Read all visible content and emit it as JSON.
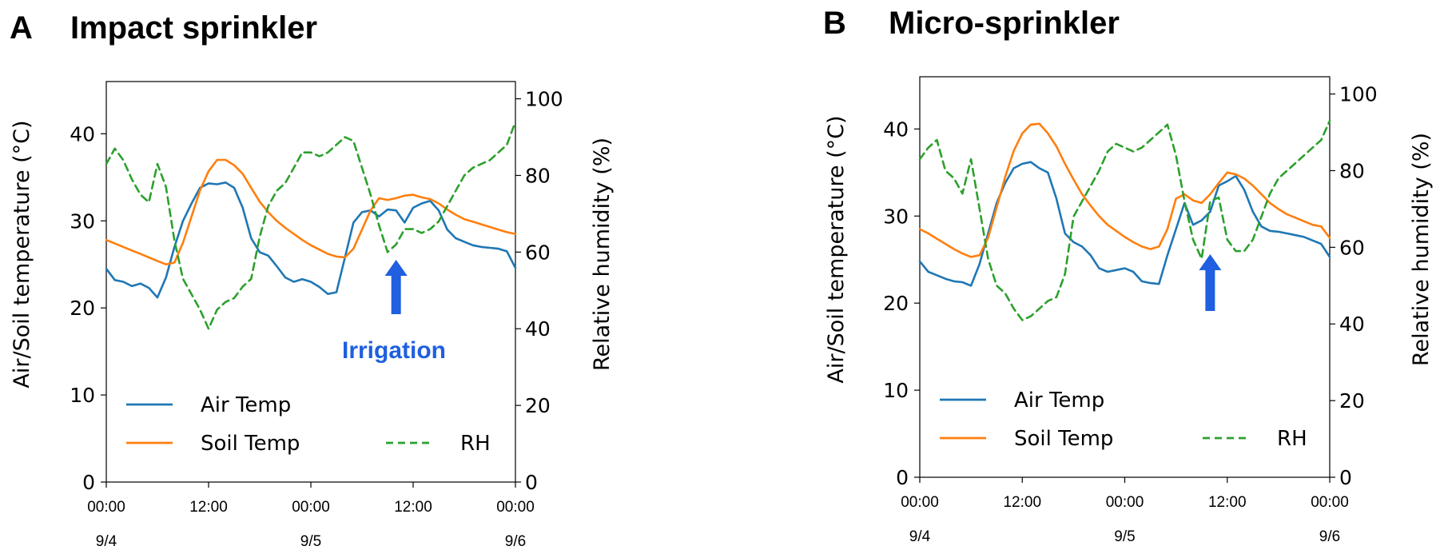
{
  "chart_data": [
    {
      "type": "line",
      "panel_letter": "A",
      "title": "Impact sprinkler",
      "ylabel": "Air/Soil temperature (°C)",
      "y2label": "Relative humidity (%)",
      "xlim": [
        0,
        48
      ],
      "ylim": [
        0,
        46
      ],
      "y2lim": [
        0,
        104.5
      ],
      "yticks": [
        0,
        10,
        20,
        30,
        40
      ],
      "y2ticks": [
        0,
        20,
        40,
        60,
        80,
        100
      ],
      "xticks": [
        {
          "hour": 0,
          "time": "00:00",
          "date": "9/4"
        },
        {
          "hour": 12,
          "time": "12:00",
          "date": ""
        },
        {
          "hour": 24,
          "time": "00:00",
          "date": "9/5"
        },
        {
          "hour": 36,
          "time": "12:00",
          "date": ""
        },
        {
          "hour": 48,
          "time": "00:00",
          "date": "9/6"
        }
      ],
      "legend_placement": "bottom",
      "grid": false,
      "annotation": {
        "text": "Irrigation",
        "x_hour": 34,
        "arrow": true
      },
      "series": [
        {
          "name": "Air Temp",
          "axis": "left",
          "color": "#1f77b4",
          "style": "solid",
          "x": [
            0,
            1,
            2,
            3,
            4,
            5,
            6,
            7,
            8,
            9,
            10,
            11,
            12,
            13,
            14,
            15,
            16,
            17,
            18,
            19,
            20,
            21,
            22,
            23,
            24,
            25,
            26,
            27,
            28,
            29,
            30,
            31,
            32,
            33,
            34,
            35,
            36,
            37,
            38,
            39,
            40,
            41,
            42,
            43,
            44,
            45,
            46,
            47,
            48
          ],
          "y": [
            24.5,
            23.2,
            23.0,
            22.5,
            22.8,
            22.3,
            21.2,
            23.5,
            27.0,
            30.0,
            32.0,
            33.8,
            34.3,
            34.2,
            34.4,
            33.8,
            31.5,
            28.0,
            26.4,
            26.0,
            24.8,
            23.5,
            23.0,
            23.3,
            23.0,
            22.4,
            21.6,
            21.8,
            25.8,
            29.8,
            31.0,
            31.2,
            30.5,
            31.3,
            31.2,
            29.8,
            31.5,
            32.0,
            32.3,
            31.2,
            29.0,
            28.0,
            27.6,
            27.2,
            27.0,
            26.9,
            26.8,
            26.5,
            24.6
          ]
        },
        {
          "name": "Soil Temp",
          "axis": "left",
          "color": "#ff7f0e",
          "style": "solid",
          "x": [
            0,
            1,
            2,
            3,
            4,
            5,
            6,
            7,
            8,
            9,
            10,
            11,
            12,
            13,
            14,
            15,
            16,
            17,
            18,
            19,
            20,
            21,
            22,
            23,
            24,
            25,
            26,
            27,
            28,
            29,
            30,
            31,
            32,
            33,
            34,
            35,
            36,
            37,
            38,
            39,
            40,
            41,
            42,
            43,
            44,
            45,
            46,
            47,
            48
          ],
          "y": [
            27.8,
            27.4,
            27.0,
            26.6,
            26.2,
            25.8,
            25.4,
            25.0,
            25.2,
            27.5,
            30.5,
            33.5,
            35.7,
            37.0,
            37.0,
            36.4,
            35.4,
            33.8,
            32.2,
            31.0,
            30.0,
            29.2,
            28.5,
            27.8,
            27.2,
            26.7,
            26.2,
            25.9,
            25.8,
            26.8,
            29.0,
            31.2,
            32.6,
            32.4,
            32.6,
            32.9,
            33.0,
            32.7,
            32.5,
            32.0,
            31.3,
            30.7,
            30.2,
            29.9,
            29.6,
            29.3,
            29.0,
            28.7,
            28.5
          ]
        },
        {
          "name": "RH",
          "axis": "right",
          "color": "#2ca02c",
          "style": "dashed",
          "x": [
            0,
            1,
            2,
            3,
            4,
            5,
            6,
            7,
            8,
            9,
            10,
            11,
            12,
            13,
            14,
            15,
            16,
            17,
            18,
            19,
            20,
            21,
            22,
            23,
            24,
            25,
            26,
            27,
            28,
            29,
            30,
            31,
            32,
            33,
            34,
            35,
            36,
            37,
            38,
            39,
            40,
            41,
            42,
            43,
            44,
            45,
            46,
            47,
            48
          ],
          "y": [
            83,
            87,
            84,
            79,
            75,
            73,
            83,
            77,
            63,
            53,
            49,
            45,
            40,
            45,
            47,
            48,
            51,
            53,
            64,
            72,
            76,
            78,
            82,
            86,
            86,
            85,
            86,
            88,
            90,
            89,
            82,
            75,
            67,
            60,
            62,
            66,
            66,
            65,
            66,
            68,
            72,
            76,
            80,
            82,
            83,
            84,
            86,
            88,
            94
          ]
        }
      ]
    },
    {
      "type": "line",
      "panel_letter": "B",
      "title": "Micro-sprinkler",
      "ylabel": "Air/Soil temperature (°C)",
      "y2label": "Relative humidity (%)",
      "xlim": [
        0,
        48
      ],
      "ylim": [
        0,
        46
      ],
      "y2lim": [
        0,
        104.5
      ],
      "yticks": [
        0,
        10,
        20,
        30,
        40
      ],
      "y2ticks": [
        0,
        20,
        40,
        60,
        80,
        100
      ],
      "xticks": [
        {
          "hour": 0,
          "time": "00:00",
          "date": "9/4"
        },
        {
          "hour": 12,
          "time": "12:00",
          "date": ""
        },
        {
          "hour": 24,
          "time": "00:00",
          "date": "9/5"
        },
        {
          "hour": 36,
          "time": "12:00",
          "date": ""
        },
        {
          "hour": 48,
          "time": "00:00",
          "date": "9/6"
        }
      ],
      "legend_placement": "bottom",
      "grid": false,
      "annotation": {
        "text": "",
        "x_hour": 34,
        "arrow": true
      },
      "series": [
        {
          "name": "Air Temp",
          "axis": "left",
          "color": "#1f77b4",
          "style": "solid",
          "x": [
            0,
            1,
            2,
            3,
            4,
            5,
            6,
            7,
            8,
            9,
            10,
            11,
            12,
            13,
            14,
            15,
            16,
            17,
            18,
            19,
            20,
            21,
            22,
            23,
            24,
            25,
            26,
            27,
            28,
            29,
            30,
            31,
            32,
            33,
            34,
            35,
            36,
            37,
            38,
            39,
            40,
            41,
            42,
            43,
            44,
            45,
            46,
            47,
            48
          ],
          "y": [
            24.8,
            23.6,
            23.2,
            22.8,
            22.5,
            22.4,
            22.0,
            24.5,
            28.0,
            31.5,
            33.8,
            35.5,
            36.0,
            36.2,
            35.5,
            35.0,
            32.0,
            28.0,
            27.0,
            26.5,
            25.5,
            24.0,
            23.6,
            23.8,
            24.0,
            23.6,
            22.5,
            22.3,
            22.2,
            25.5,
            28.5,
            31.5,
            29.0,
            29.5,
            30.5,
            33.5,
            34.0,
            34.6,
            33.0,
            30.5,
            28.8,
            28.3,
            28.2,
            28.0,
            27.8,
            27.6,
            27.2,
            26.8,
            25.3
          ]
        },
        {
          "name": "Soil Temp",
          "axis": "left",
          "color": "#ff7f0e",
          "style": "solid",
          "x": [
            0,
            1,
            2,
            3,
            4,
            5,
            6,
            7,
            8,
            9,
            10,
            11,
            12,
            13,
            14,
            15,
            16,
            17,
            18,
            19,
            20,
            21,
            22,
            23,
            24,
            25,
            26,
            27,
            28,
            29,
            30,
            31,
            32,
            33,
            34,
            35,
            36,
            37,
            38,
            39,
            40,
            41,
            42,
            43,
            44,
            45,
            46,
            47,
            48
          ],
          "y": [
            28.5,
            28.0,
            27.4,
            26.8,
            26.2,
            25.7,
            25.3,
            25.5,
            27.5,
            31.0,
            34.5,
            37.5,
            39.5,
            40.5,
            40.6,
            39.5,
            38.0,
            36.0,
            34.2,
            32.5,
            31.2,
            30.0,
            29.0,
            28.3,
            27.6,
            27.0,
            26.5,
            26.2,
            26.5,
            28.5,
            32.0,
            32.5,
            31.8,
            31.5,
            32.5,
            33.8,
            35.0,
            34.8,
            34.3,
            33.5,
            32.5,
            31.5,
            30.8,
            30.2,
            29.8,
            29.4,
            29.0,
            28.8,
            27.5
          ]
        },
        {
          "name": "RH",
          "axis": "right",
          "color": "#2ca02c",
          "style": "dashed",
          "x": [
            0,
            1,
            2,
            3,
            4,
            5,
            6,
            7,
            8,
            9,
            10,
            11,
            12,
            13,
            14,
            15,
            16,
            17,
            18,
            19,
            20,
            21,
            22,
            23,
            24,
            25,
            26,
            27,
            28,
            29,
            30,
            31,
            32,
            33,
            34,
            35,
            36,
            37,
            38,
            39,
            40,
            41,
            42,
            43,
            44,
            45,
            46,
            47,
            48
          ],
          "y": [
            83,
            86,
            88,
            80,
            78,
            74,
            83,
            70,
            57,
            50,
            48,
            44,
            41,
            42,
            44,
            46,
            47,
            53,
            68,
            72,
            76,
            80,
            85,
            87,
            86,
            85,
            86,
            88,
            90,
            92,
            84,
            72,
            62,
            57,
            72,
            73,
            62,
            59,
            59,
            62,
            68,
            74,
            78,
            80,
            82,
            84,
            86,
            88,
            93
          ]
        }
      ]
    }
  ]
}
